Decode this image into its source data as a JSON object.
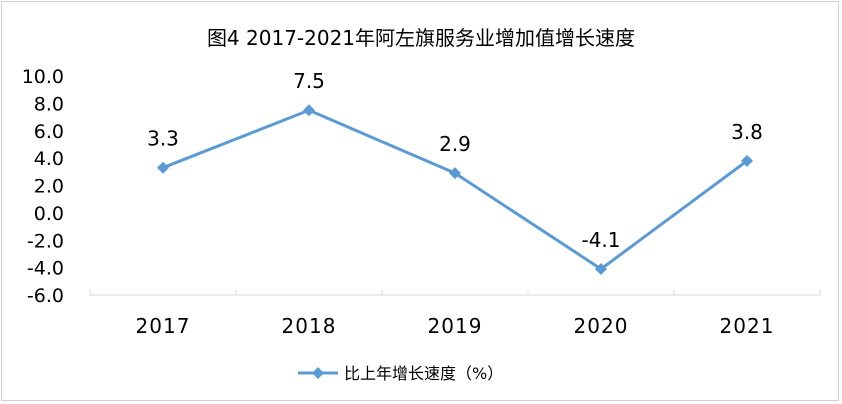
{
  "chart_data": {
    "type": "line",
    "title": "图4  2017-2021年阿左旗服务业增加值增长速度",
    "categories": [
      "2017",
      "2018",
      "2019",
      "2020",
      "2021"
    ],
    "series": [
      {
        "name": "比上年增长速度（%）",
        "values": [
          3.3,
          7.5,
          2.9,
          -4.1,
          3.8
        ],
        "color": "#5b9bd5"
      }
    ],
    "data_labels": [
      "3.3",
      "7.5",
      "2.9",
      "-4.1",
      "3.8"
    ],
    "y_ticks": [
      "10.0",
      "8.0",
      "6.0",
      "4.0",
      "2.0",
      "0.0",
      "-2.0",
      "-4.0",
      "-6.0"
    ],
    "ylim": [
      -6,
      10
    ],
    "grid": false,
    "legend": "bottom",
    "marker": "diamond"
  }
}
